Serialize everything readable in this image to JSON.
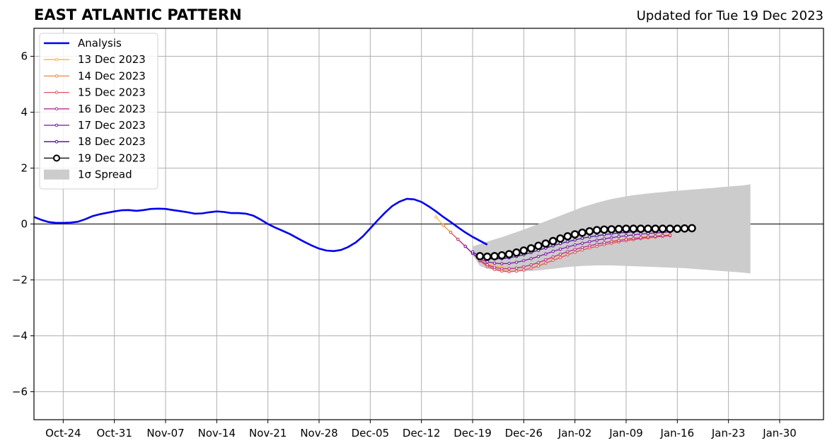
{
  "header": {
    "title": "EAST ATLANTIC PATTERN",
    "updated": "Updated for Tue 19 Dec 2023"
  },
  "chart_data": {
    "type": "line",
    "title": "EAST ATLANTIC PATTERN",
    "xlabel": "",
    "ylabel": "",
    "x_axis": {
      "type": "date",
      "range": [
        "2023-10-20",
        "2024-02-05"
      ],
      "ticks": [
        {
          "date": "2023-10-24",
          "label": "Oct-24"
        },
        {
          "date": "2023-10-31",
          "label": "Oct-31"
        },
        {
          "date": "2023-11-07",
          "label": "Nov-07"
        },
        {
          "date": "2023-11-14",
          "label": "Nov-14"
        },
        {
          "date": "2023-11-21",
          "label": "Nov-21"
        },
        {
          "date": "2023-11-28",
          "label": "Nov-28"
        },
        {
          "date": "2023-12-05",
          "label": "Dec-05"
        },
        {
          "date": "2023-12-12",
          "label": "Dec-12"
        },
        {
          "date": "2023-12-19",
          "label": "Dec-19"
        },
        {
          "date": "2023-12-26",
          "label": "Dec-26"
        },
        {
          "date": "2024-01-02",
          "label": "Jan-02"
        },
        {
          "date": "2024-01-09",
          "label": "Jan-09"
        },
        {
          "date": "2024-01-16",
          "label": "Jan-16"
        },
        {
          "date": "2024-01-23",
          "label": "Jan-23"
        },
        {
          "date": "2024-01-30",
          "label": "Jan-30"
        }
      ]
    },
    "ylim": [
      -7,
      7
    ],
    "y_ticks": [
      {
        "value": 6,
        "label": "6"
      },
      {
        "value": 4,
        "label": "4"
      },
      {
        "value": 2,
        "label": "2"
      },
      {
        "value": 0,
        "label": "0"
      },
      {
        "value": -2,
        "label": "−2"
      },
      {
        "value": -4,
        "label": "−4"
      },
      {
        "value": -6,
        "label": "−6"
      }
    ],
    "grid": true,
    "legend_position": "top-left",
    "analysis": {
      "name": "Analysis",
      "color": "#0000ee",
      "start_date": "2023-10-20",
      "values": [
        0.25,
        0.15,
        0.07,
        0.04,
        0.04,
        0.05,
        0.08,
        0.17,
        0.28,
        0.35,
        0.4,
        0.45,
        0.49,
        0.5,
        0.47,
        0.5,
        0.54,
        0.55,
        0.54,
        0.5,
        0.46,
        0.42,
        0.37,
        0.38,
        0.42,
        0.45,
        0.43,
        0.39,
        0.39,
        0.37,
        0.3,
        0.16,
        0.0,
        -0.13,
        -0.24,
        -0.36,
        -0.5,
        -0.64,
        -0.77,
        -0.88,
        -0.95,
        -0.97,
        -0.93,
        -0.82,
        -0.66,
        -0.44,
        -0.16,
        0.13,
        0.4,
        0.64,
        0.8,
        0.9,
        0.88,
        0.79,
        0.63,
        0.45,
        0.25,
        0.07,
        -0.12,
        -0.3,
        -0.46,
        -0.6,
        -0.74
      ]
    },
    "forecasts": [
      {
        "name": "13 Dec 2023",
        "color": "#fdb42f",
        "start_date": "2023-12-14",
        "values": [
          0.25,
          -0.05,
          -0.3,
          -0.55,
          -0.8,
          -1.05,
          -1.25,
          -1.4,
          -1.5,
          -1.55,
          -1.58,
          -1.57,
          -1.53,
          -1.47,
          -1.4,
          -1.3,
          -1.2,
          -1.1,
          -1.0,
          -0.92,
          -0.85,
          -0.78,
          -0.72,
          -0.66,
          -0.61,
          -0.57,
          -0.53,
          -0.5,
          -0.47,
          -0.45,
          -0.42,
          -0.4,
          -0.38
        ]
      },
      {
        "name": "14 Dec 2023",
        "color": "#f3843f",
        "start_date": "2023-12-15",
        "values": [
          -0.05,
          -0.3,
          -0.55,
          -0.8,
          -1.05,
          -1.3,
          -1.48,
          -1.6,
          -1.67,
          -1.7,
          -1.68,
          -1.64,
          -1.58,
          -1.5,
          -1.4,
          -1.3,
          -1.2,
          -1.1,
          -1.01,
          -0.93,
          -0.86,
          -0.8,
          -0.74,
          -0.69,
          -0.64,
          -0.6,
          -0.56,
          -0.53,
          -0.5,
          -0.47,
          -0.44,
          -0.42
        ]
      },
      {
        "name": "15 Dec 2023",
        "color": "#e15462",
        "start_date": "2023-12-16",
        "values": [
          -0.3,
          -0.55,
          -0.8,
          -1.05,
          -1.32,
          -1.52,
          -1.63,
          -1.69,
          -1.71,
          -1.69,
          -1.65,
          -1.58,
          -1.5,
          -1.4,
          -1.3,
          -1.2,
          -1.1,
          -1.01,
          -0.93,
          -0.86,
          -0.8,
          -0.74,
          -0.69,
          -0.64,
          -0.6,
          -0.56,
          -0.52,
          -0.49,
          -0.46,
          -0.44,
          -0.42
        ]
      },
      {
        "name": "16 Dec 2023",
        "color": "#b42e8e",
        "start_date": "2023-12-17",
        "values": [
          -0.55,
          -0.8,
          -1.05,
          -1.3,
          -1.46,
          -1.55,
          -1.6,
          -1.6,
          -1.58,
          -1.53,
          -1.46,
          -1.38,
          -1.28,
          -1.18,
          -1.08,
          -0.99,
          -0.91,
          -0.84,
          -0.78,
          -0.72,
          -0.67,
          -0.63,
          -0.59,
          -0.55,
          -0.52,
          -0.49,
          -0.46,
          -0.44,
          -0.42,
          -0.4
        ]
      },
      {
        "name": "17 Dec 2023",
        "color": "#7b10a8",
        "start_date": "2023-12-18",
        "values": [
          -0.8,
          -1.05,
          -1.25,
          -1.35,
          -1.4,
          -1.42,
          -1.41,
          -1.37,
          -1.31,
          -1.24,
          -1.16,
          -1.07,
          -0.98,
          -0.9,
          -0.82,
          -0.75,
          -0.69,
          -0.63,
          -0.58,
          -0.53,
          -0.49,
          -0.45,
          -0.42,
          -0.39,
          -0.36,
          -0.34,
          -0.32,
          -0.3,
          -0.28
        ]
      },
      {
        "name": "18 Dec 2023",
        "color": "#3f0a90",
        "start_date": "2023-12-19",
        "values": [
          -1.0,
          -1.15,
          -1.23,
          -1.25,
          -1.24,
          -1.21,
          -1.16,
          -1.1,
          -1.02,
          -0.94,
          -0.86,
          -0.78,
          -0.7,
          -0.63,
          -0.57,
          -0.51,
          -0.46,
          -0.42,
          -0.38,
          -0.35,
          -0.32,
          -0.3,
          -0.28,
          -0.26,
          -0.24,
          -0.23,
          -0.22,
          -0.21
        ]
      },
      {
        "name": "19 Dec 2023",
        "color": "#000000",
        "start_date": "2023-12-20",
        "values": [
          -1.15,
          -1.17,
          -1.15,
          -1.12,
          -1.08,
          -1.02,
          -0.95,
          -0.87,
          -0.78,
          -0.7,
          -0.61,
          -0.52,
          -0.44,
          -0.37,
          -0.31,
          -0.26,
          -0.22,
          -0.2,
          -0.19,
          -0.18,
          -0.17,
          -0.17,
          -0.17,
          -0.17,
          -0.17,
          -0.17,
          -0.17,
          -0.17,
          -0.16,
          -0.15
        ]
      }
    ],
    "spread": {
      "name": "1σ Spread",
      "color": "#cccccc",
      "start_date": "2023-12-19",
      "upper": [
        -0.8,
        -0.72,
        -0.63,
        -0.55,
        -0.47,
        -0.38,
        -0.29,
        -0.2,
        -0.1,
        0.0,
        0.1,
        0.2,
        0.3,
        0.4,
        0.5,
        0.6,
        0.68,
        0.76,
        0.83,
        0.89,
        0.94,
        0.99,
        1.03,
        1.06,
        1.09,
        1.12,
        1.14,
        1.17,
        1.19,
        1.21,
        1.23,
        1.25,
        1.27,
        1.29,
        1.32,
        1.34,
        1.36,
        1.38,
        1.42
      ],
      "lower": [
        -1.1,
        -1.5,
        -1.6,
        -1.65,
        -1.68,
        -1.7,
        -1.7,
        -1.69,
        -1.68,
        -1.66,
        -1.63,
        -1.6,
        -1.57,
        -1.54,
        -1.52,
        -1.5,
        -1.49,
        -1.48,
        -1.48,
        -1.48,
        -1.49,
        -1.5,
        -1.51,
        -1.52,
        -1.53,
        -1.54,
        -1.55,
        -1.56,
        -1.57,
        -1.58,
        -1.6,
        -1.62,
        -1.64,
        -1.66,
        -1.68,
        -1.7,
        -1.72,
        -1.74,
        -1.77
      ]
    }
  }
}
